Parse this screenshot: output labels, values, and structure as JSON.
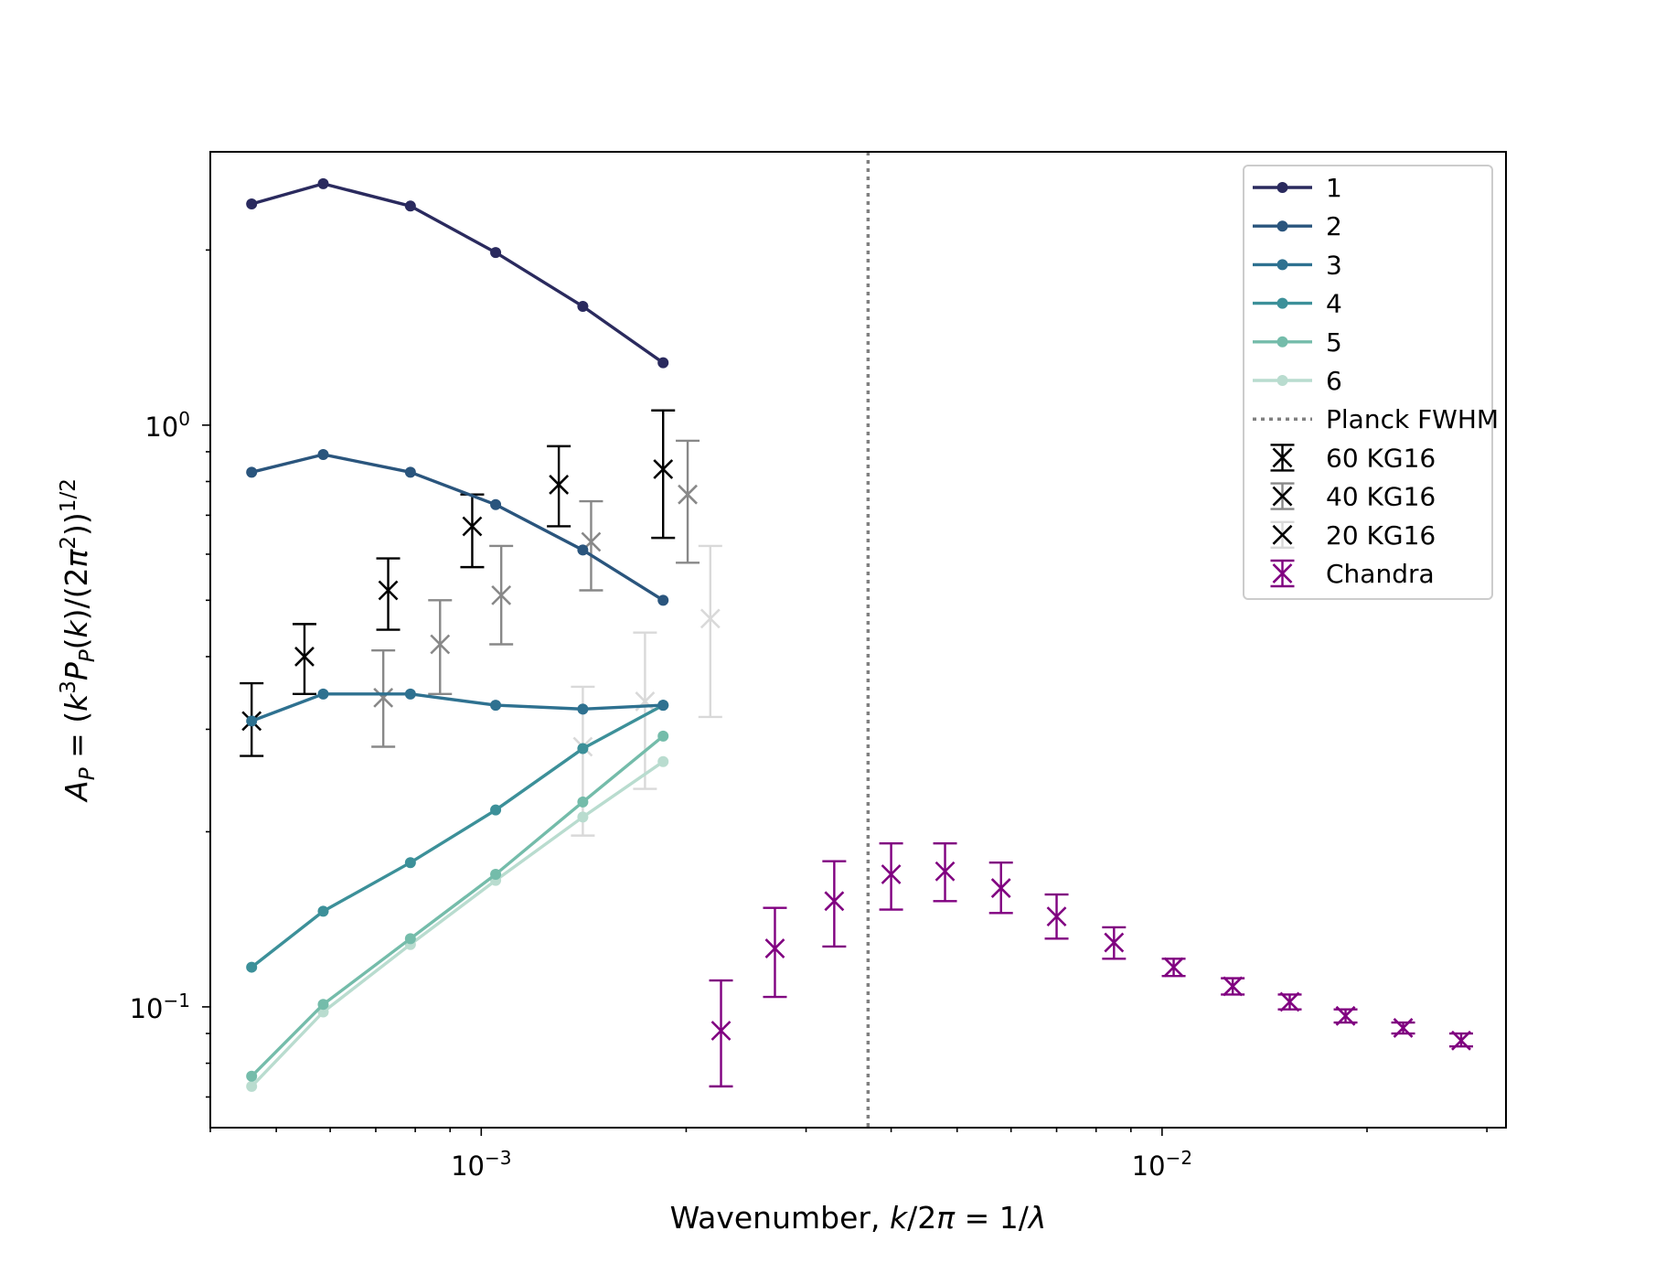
{
  "chart_data": {
    "type": "line",
    "xscale": "log",
    "yscale": "log",
    "xlim": [
      0.0004,
      0.032
    ],
    "ylim": [
      0.062,
      2.95
    ],
    "xlabel": "Wavenumber, k/2π = 1/λ",
    "ylabel": "A_P = (k^3 P_P(k)/(2π^2))^1/2",
    "xticks": [
      {
        "value": 0.001,
        "base": "10",
        "exp": "−3"
      },
      {
        "value": 0.01,
        "base": "10",
        "exp": "−2"
      }
    ],
    "yticks": [
      {
        "value": 0.1,
        "base": "10",
        "exp": "−1"
      },
      {
        "value": 1.0,
        "base": "10",
        "exp": "0"
      }
    ],
    "grid": false,
    "legend_position": "top-right",
    "planck_fwhm_k": 0.0037,
    "series": [
      {
        "name": "1",
        "color": "#2a2a5e",
        "x": [
          0.00046,
          0.000586,
          0.000787,
          0.00105,
          0.00141,
          0.00185
        ],
        "y": [
          2.4,
          2.6,
          2.38,
          1.98,
          1.6,
          1.28
        ]
      },
      {
        "name": "2",
        "color": "#2a557d",
        "x": [
          0.00046,
          0.000586,
          0.000787,
          0.00105,
          0.00141,
          0.00185
        ],
        "y": [
          0.83,
          0.89,
          0.83,
          0.73,
          0.61,
          0.5
        ]
      },
      {
        "name": "3",
        "color": "#2e7190",
        "x": [
          0.00046,
          0.000586,
          0.000787,
          0.00105,
          0.00141,
          0.00185
        ],
        "y": [
          0.31,
          0.345,
          0.345,
          0.33,
          0.325,
          0.33
        ]
      },
      {
        "name": "4",
        "color": "#3c9099",
        "x": [
          0.00046,
          0.000586,
          0.000787,
          0.00105,
          0.00141,
          0.00185
        ],
        "y": [
          0.117,
          0.146,
          0.177,
          0.218,
          0.278,
          0.33
        ]
      },
      {
        "name": "5",
        "color": "#74bcaa",
        "x": [
          0.00046,
          0.000586,
          0.000787,
          0.00105,
          0.00141,
          0.00185
        ],
        "y": [
          0.076,
          0.101,
          0.131,
          0.169,
          0.225,
          0.292
        ]
      },
      {
        "name": "6",
        "color": "#b9dccf",
        "x": [
          0.00046,
          0.000586,
          0.000787,
          0.00105,
          0.00141,
          0.00185
        ],
        "y": [
          0.073,
          0.098,
          0.128,
          0.165,
          0.212,
          0.264
        ]
      }
    ],
    "errorbar_series": [
      {
        "name": "60 KG16",
        "color": "#000000",
        "points": [
          {
            "x": 0.00046,
            "y": 0.31,
            "lo": 0.27,
            "hi": 0.36
          },
          {
            "x": 0.00055,
            "y": 0.4,
            "lo": 0.345,
            "hi": 0.455
          },
          {
            "x": 0.00073,
            "y": 0.52,
            "lo": 0.445,
            "hi": 0.59
          },
          {
            "x": 0.00097,
            "y": 0.67,
            "lo": 0.57,
            "hi": 0.76
          },
          {
            "x": 0.0013,
            "y": 0.79,
            "lo": 0.67,
            "hi": 0.92
          },
          {
            "x": 0.00185,
            "y": 0.84,
            "lo": 0.64,
            "hi": 1.06
          }
        ]
      },
      {
        "name": "40 KG16",
        "color": "#888888",
        "points": [
          {
            "x": 0.000718,
            "y": 0.34,
            "lo": 0.28,
            "hi": 0.41
          },
          {
            "x": 0.00087,
            "y": 0.42,
            "lo": 0.345,
            "hi": 0.5
          },
          {
            "x": 0.00107,
            "y": 0.51,
            "lo": 0.42,
            "hi": 0.62
          },
          {
            "x": 0.00145,
            "y": 0.63,
            "lo": 0.52,
            "hi": 0.74
          },
          {
            "x": 0.00201,
            "y": 0.76,
            "lo": 0.58,
            "hi": 0.94
          }
        ]
      },
      {
        "name": "20 KG16",
        "color": "#d9d9d9",
        "points": [
          {
            "x": 0.00141,
            "y": 0.28,
            "lo": 0.197,
            "hi": 0.355
          },
          {
            "x": 0.00174,
            "y": 0.335,
            "lo": 0.237,
            "hi": 0.44
          },
          {
            "x": 0.00217,
            "y": 0.465,
            "lo": 0.315,
            "hi": 0.62
          }
        ]
      },
      {
        "name": "Chandra",
        "color": "#800080",
        "points": [
          {
            "x": 0.00225,
            "y": 0.091,
            "lo": 0.073,
            "hi": 0.111
          },
          {
            "x": 0.0027,
            "y": 0.126,
            "lo": 0.104,
            "hi": 0.148
          },
          {
            "x": 0.0033,
            "y": 0.152,
            "lo": 0.127,
            "hi": 0.178
          },
          {
            "x": 0.004,
            "y": 0.169,
            "lo": 0.147,
            "hi": 0.191
          },
          {
            "x": 0.0048,
            "y": 0.171,
            "lo": 0.152,
            "hi": 0.191
          },
          {
            "x": 0.0058,
            "y": 0.16,
            "lo": 0.145,
            "hi": 0.177
          },
          {
            "x": 0.007,
            "y": 0.143,
            "lo": 0.131,
            "hi": 0.156
          },
          {
            "x": 0.0085,
            "y": 0.129,
            "lo": 0.121,
            "hi": 0.137
          },
          {
            "x": 0.0104,
            "y": 0.117,
            "lo": 0.113,
            "hi": 0.121
          },
          {
            "x": 0.0127,
            "y": 0.1085,
            "lo": 0.105,
            "hi": 0.112
          },
          {
            "x": 0.0154,
            "y": 0.102,
            "lo": 0.099,
            "hi": 0.105
          },
          {
            "x": 0.0186,
            "y": 0.0965,
            "lo": 0.094,
            "hi": 0.099
          },
          {
            "x": 0.0226,
            "y": 0.092,
            "lo": 0.09,
            "hi": 0.094
          },
          {
            "x": 0.0275,
            "y": 0.0875,
            "lo": 0.0855,
            "hi": 0.09
          }
        ]
      }
    ],
    "legend": [
      {
        "label": "1",
        "kind": "line",
        "ref": "1"
      },
      {
        "label": "2",
        "kind": "line",
        "ref": "2"
      },
      {
        "label": "3",
        "kind": "line",
        "ref": "3"
      },
      {
        "label": "4",
        "kind": "line",
        "ref": "4"
      },
      {
        "label": "5",
        "kind": "line",
        "ref": "5"
      },
      {
        "label": "6",
        "kind": "line",
        "ref": "6"
      },
      {
        "label": "Planck FWHM",
        "kind": "dotted",
        "color": "#808080"
      },
      {
        "label": "60 KG16",
        "kind": "errorbar",
        "ref": "60 KG16"
      },
      {
        "label": "40 KG16",
        "kind": "errorbar",
        "ref": "40 KG16"
      },
      {
        "label": "20 KG16",
        "kind": "errorbar",
        "ref": "20 KG16"
      },
      {
        "label": "Chandra",
        "kind": "errorbar",
        "ref": "Chandra"
      }
    ]
  }
}
